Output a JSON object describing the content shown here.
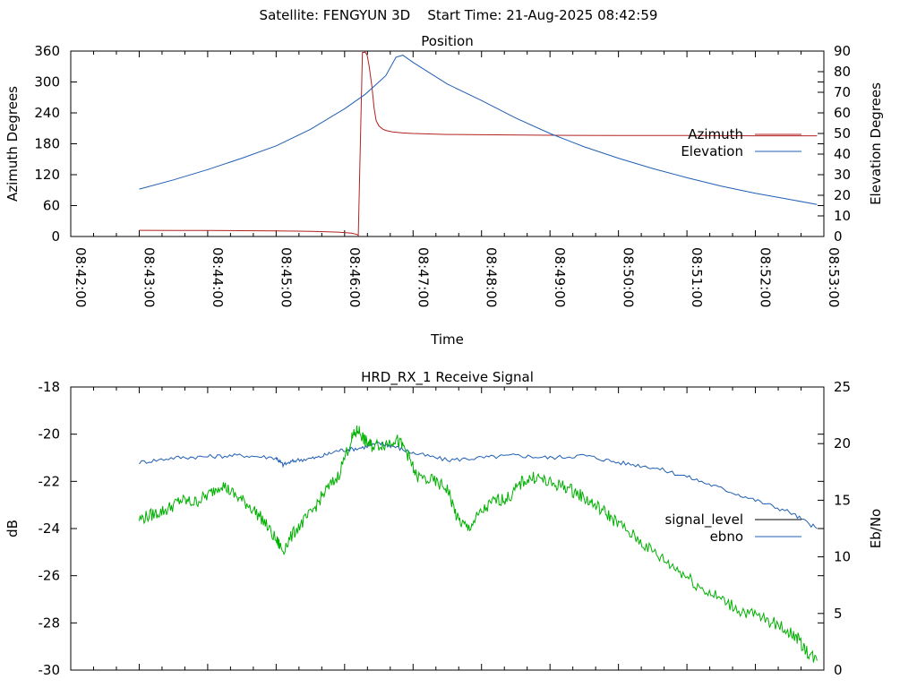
{
  "header": {
    "satellite": "Satellite: FENGYUN 3D",
    "start_time": "Start Time: 21-Aug-2025 08:42:59"
  },
  "chart_data": [
    {
      "type": "line",
      "title": "Position",
      "xlabel": "Time",
      "ylabel": "Azimuth Degrees",
      "y2label": "Elevation Degrees",
      "x_ticks": [
        "08:42:00",
        "08:43:00",
        "08:44:00",
        "08:45:00",
        "08:46:00",
        "08:47:00",
        "08:48:00",
        "08:49:00",
        "08:50:00",
        "08:51:00",
        "08:52:00",
        "08:53:00"
      ],
      "xlim_minutes": [
        0,
        11
      ],
      "ylim": [
        0,
        360
      ],
      "y_ticks": [
        0,
        60,
        120,
        180,
        240,
        300,
        360
      ],
      "y2lim": [
        0,
        90
      ],
      "y2_ticks": [
        0,
        10,
        20,
        30,
        40,
        50,
        60,
        70,
        80,
        90
      ],
      "legend_position": "right",
      "grid": false,
      "series": [
        {
          "name": "Azimuth",
          "axis": "y",
          "color": "#b22222",
          "points": [
            [
              1.0,
              12
            ],
            [
              1.5,
              11.8
            ],
            [
              2.0,
              11.6
            ],
            [
              2.5,
              11.3
            ],
            [
              3.0,
              11.0
            ],
            [
              3.3,
              10.5
            ],
            [
              3.6,
              9.8
            ],
            [
              3.9,
              8.5
            ],
            [
              4.1,
              6.5
            ],
            [
              4.18,
              4
            ],
            [
              4.2,
              2
            ],
            [
              4.23,
              180
            ],
            [
              4.26,
              357
            ],
            [
              4.3,
              358
            ],
            [
              4.33,
              352
            ],
            [
              4.36,
              330
            ],
            [
              4.4,
              290
            ],
            [
              4.43,
              250
            ],
            [
              4.46,
              225
            ],
            [
              4.5,
              215
            ],
            [
              4.55,
              209
            ],
            [
              4.6,
              206
            ],
            [
              4.7,
              203
            ],
            [
              4.85,
              201
            ],
            [
              5.0,
              200
            ],
            [
              5.5,
              198
            ],
            [
              6.0,
              197.5
            ],
            [
              7.0,
              196.5
            ],
            [
              8.0,
              196
            ],
            [
              9.0,
              196
            ],
            [
              10.0,
              195.5
            ],
            [
              10.9,
              195.5
            ]
          ]
        },
        {
          "name": "Elevation",
          "axis": "y2",
          "color": "#1f5fb4",
          "points": [
            [
              1.0,
              23
            ],
            [
              1.5,
              27.5
            ],
            [
              2.0,
              32.5
            ],
            [
              2.5,
              38
            ],
            [
              3.0,
              44
            ],
            [
              3.5,
              52
            ],
            [
              4.0,
              62
            ],
            [
              4.3,
              69
            ],
            [
              4.6,
              78
            ],
            [
              4.75,
              87
            ],
            [
              4.85,
              88
            ],
            [
              5.0,
              84.5
            ],
            [
              5.5,
              74
            ],
            [
              6.0,
              66
            ],
            [
              6.5,
              57.5
            ],
            [
              7.0,
              50
            ],
            [
              7.5,
              43.5
            ],
            [
              8.0,
              38
            ],
            [
              8.5,
              33
            ],
            [
              9.0,
              28.5
            ],
            [
              9.5,
              24.5
            ],
            [
              10.0,
              21
            ],
            [
              10.5,
              18
            ],
            [
              10.9,
              15.5
            ]
          ]
        }
      ]
    },
    {
      "type": "line",
      "title": "HRD_RX_1 Receive Signal",
      "xlabel": "",
      "ylabel": "dB",
      "y2label": "Eb/No",
      "xlim_minutes": [
        0,
        11
      ],
      "ylim": [
        -30,
        -18
      ],
      "y_ticks": [
        -30,
        -28,
        -26,
        -24,
        -22,
        -20,
        -18
      ],
      "y2lim": [
        0,
        25
      ],
      "y2_ticks": [
        0,
        5,
        10,
        15,
        20,
        25
      ],
      "legend_position": "right",
      "grid": false,
      "series": [
        {
          "name": "signal_level",
          "axis": "y",
          "color": "#000000",
          "points": []
        },
        {
          "name": "ebno",
          "axis": "y",
          "color": "#1f5fb4",
          "points": [
            [
              1.0,
              -21.2
            ],
            [
              1.5,
              -21.0
            ],
            [
              2.0,
              -20.95
            ],
            [
              2.5,
              -20.9
            ],
            [
              3.0,
              -21.0
            ],
            [
              3.1,
              -21.3
            ],
            [
              3.3,
              -21.1
            ],
            [
              3.6,
              -21.0
            ],
            [
              3.9,
              -20.7
            ],
            [
              4.2,
              -20.6
            ],
            [
              4.5,
              -20.4
            ],
            [
              4.7,
              -20.5
            ],
            [
              5.0,
              -20.8
            ],
            [
              5.5,
              -21.1
            ],
            [
              6.0,
              -21.0
            ],
            [
              6.5,
              -20.9
            ],
            [
              7.0,
              -21.0
            ],
            [
              7.5,
              -20.9
            ],
            [
              8.0,
              -21.2
            ],
            [
              8.5,
              -21.4
            ],
            [
              9.0,
              -21.8
            ],
            [
              9.5,
              -22.3
            ],
            [
              10.0,
              -22.8
            ],
            [
              10.5,
              -23.3
            ],
            [
              10.9,
              -24.0
            ]
          ]
        },
        {
          "name": "",
          "axis": "y",
          "color": "#00b000",
          "points": [
            [
              1.0,
              -23.6
            ],
            [
              1.2,
              -23.4
            ],
            [
              1.4,
              -23.2
            ],
            [
              1.6,
              -22.8
            ],
            [
              1.8,
              -22.9
            ],
            [
              2.0,
              -22.6
            ],
            [
              2.2,
              -22.1
            ],
            [
              2.4,
              -22.6
            ],
            [
              2.6,
              -23.0
            ],
            [
              2.8,
              -23.6
            ],
            [
              3.0,
              -24.5
            ],
            [
              3.1,
              -24.9
            ],
            [
              3.3,
              -24.0
            ],
            [
              3.5,
              -23.4
            ],
            [
              3.7,
              -22.5
            ],
            [
              3.9,
              -21.8
            ],
            [
              4.1,
              -20.2
            ],
            [
              4.2,
              -19.8
            ],
            [
              4.3,
              -20.3
            ],
            [
              4.4,
              -20.5
            ],
            [
              4.6,
              -20.4
            ],
            [
              4.75,
              -20.2
            ],
            [
              4.9,
              -20.7
            ],
            [
              5.05,
              -21.8
            ],
            [
              5.3,
              -22.0
            ],
            [
              5.5,
              -22.3
            ],
            [
              5.65,
              -23.6
            ],
            [
              5.8,
              -24.0
            ],
            [
              6.0,
              -23.3
            ],
            [
              6.2,
              -22.8
            ],
            [
              6.4,
              -22.7
            ],
            [
              6.6,
              -22.0
            ],
            [
              6.8,
              -21.8
            ],
            [
              7.0,
              -22.1
            ],
            [
              7.2,
              -22.2
            ],
            [
              7.4,
              -22.5
            ],
            [
              7.6,
              -22.9
            ],
            [
              7.8,
              -23.3
            ],
            [
              8.0,
              -23.8
            ],
            [
              8.3,
              -24.5
            ],
            [
              8.6,
              -25.2
            ],
            [
              8.9,
              -25.8
            ],
            [
              9.2,
              -26.5
            ],
            [
              9.5,
              -27.0
            ],
            [
              9.8,
              -27.5
            ],
            [
              10.1,
              -27.8
            ],
            [
              10.4,
              -28.2
            ],
            [
              10.6,
              -28.6
            ],
            [
              10.75,
              -29.2
            ],
            [
              10.9,
              -29.6
            ]
          ]
        }
      ]
    }
  ]
}
